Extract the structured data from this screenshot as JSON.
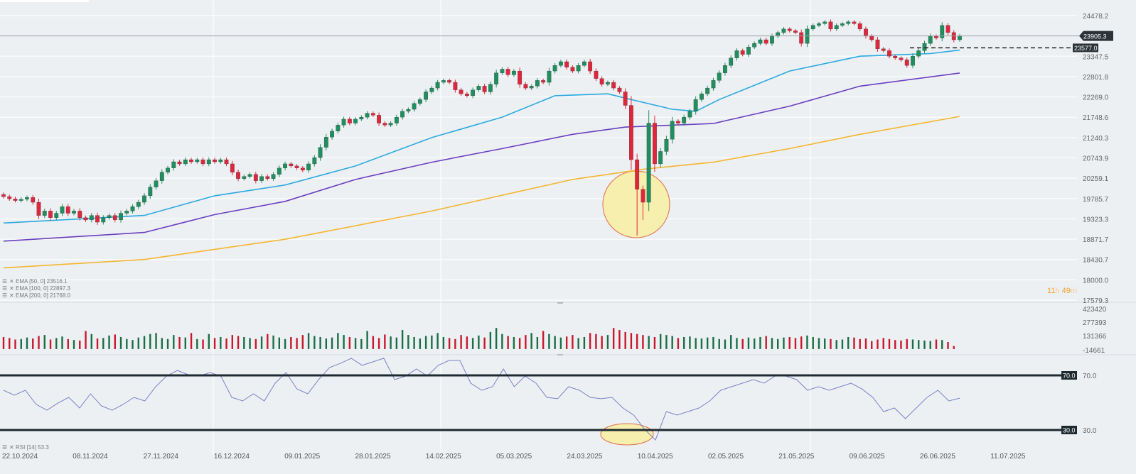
{
  "chart_data": {
    "type": "candlestick",
    "price_scale": "log",
    "price_ticks": [
      "24478.2",
      "23347.5",
      "22801.8",
      "22269.0",
      "21748.6",
      "21240.3",
      "20743.9",
      "20259.1",
      "19785.7",
      "19323.3",
      "18871.7",
      "18430.7",
      "18000.0",
      "17579.3"
    ],
    "price_range": [
      17579.3,
      24478.2
    ],
    "last_price": 23905.3,
    "last_price_label": "23905.3",
    "level_line": 23577.0,
    "level_line_label": "23577.0",
    "countdown": {
      "hours": "11",
      "h": "h",
      "minutes": "49",
      "m": "m"
    },
    "colors": {
      "up": "#1f8f5f",
      "down": "#e0263c",
      "ema50": "#29a9e0",
      "ema100": "#6a3fc0",
      "ema200": "#f5b52e",
      "rsi": "#7a80c8",
      "highlight_fill": "#f7eea0",
      "highlight_stroke": "#e06a4a"
    },
    "close": [
      19830,
      19780,
      19740,
      19770,
      19810,
      19700,
      19400,
      19500,
      19350,
      19450,
      19600,
      19450,
      19500,
      19350,
      19300,
      19400,
      19250,
      19350,
      19400,
      19300,
      19450,
      19500,
      19600,
      19700,
      19850,
      20050,
      20200,
      20400,
      20500,
      20650,
      20600,
      20700,
      20650,
      20700,
      20600,
      20700,
      20650,
      20700,
      20600,
      20400,
      20250,
      20300,
      20350,
      20200,
      20300,
      20250,
      20350,
      20500,
      20600,
      20550,
      20500,
      20450,
      20600,
      20750,
      21000,
      21250,
      21400,
      21550,
      21700,
      21600,
      21700,
      21750,
      21850,
      21800,
      21600,
      21550,
      21600,
      21750,
      21900,
      21950,
      22100,
      22200,
      22400,
      22500,
      22650,
      22700,
      22650,
      22450,
      22350,
      22300,
      22450,
      22550,
      22400,
      22600,
      22900,
      23000,
      22850,
      22950,
      22600,
      22500,
      22550,
      22700,
      22650,
      22950,
      23100,
      23200,
      23050,
      22950,
      23100,
      23200,
      22950,
      22750,
      22600,
      22650,
      22500,
      22400,
      22050,
      20700,
      20000,
      19700,
      21600,
      20600,
      20900,
      21200,
      21650,
      21600,
      21750,
      21900,
      22200,
      22350,
      22500,
      22700,
      22900,
      23100,
      23300,
      23500,
      23400,
      23600,
      23700,
      23800,
      23700,
      23900,
      24000,
      24100,
      24050,
      24000,
      23700,
      24100,
      24200,
      24250,
      24300,
      24100,
      24200,
      24250,
      24300,
      24250,
      24100,
      23900,
      23800,
      23550,
      23500,
      23350,
      23300,
      23250,
      23100,
      23350,
      23500,
      23700,
      23900,
      23850,
      24200,
      24000,
      23800,
      23905
    ],
    "low_overrides": {
      "108": 18950,
      "109": 19300,
      "110": 19500
    },
    "volume": [
      120,
      110,
      95,
      100,
      115,
      105,
      130,
      140,
      95,
      110,
      125,
      100,
      90,
      85,
      180,
      150,
      105,
      110,
      135,
      145,
      120,
      100,
      90,
      115,
      130,
      150,
      160,
      110,
      100,
      140,
      120,
      115,
      160,
      100,
      95,
      150,
      110,
      120,
      105,
      140,
      130,
      120,
      110,
      100,
      125,
      150,
      135,
      115,
      100,
      120,
      110,
      140,
      160,
      130,
      120,
      105,
      115,
      160,
      140,
      120,
      110,
      100,
      180,
      130,
      110,
      145,
      125,
      115,
      190,
      140,
      120,
      105,
      130,
      135,
      160,
      120,
      110,
      100,
      140,
      125,
      110,
      135,
      115,
      170,
      210,
      150,
      130,
      120,
      110,
      140,
      160,
      120,
      180,
      150,
      130,
      115,
      125,
      140,
      110,
      120,
      160,
      150,
      130,
      140,
      210,
      190,
      170,
      160,
      150,
      140,
      130,
      120,
      150,
      140,
      130,
      110,
      120,
      125,
      110,
      105,
      115,
      120,
      100,
      95,
      140,
      110,
      100,
      115,
      105,
      120,
      130,
      110,
      100,
      115,
      120,
      110,
      125,
      135,
      120,
      110,
      105,
      100,
      90,
      95,
      120,
      115,
      100,
      105,
      80,
      95,
      110,
      100,
      90,
      85,
      100,
      95,
      90,
      85,
      80,
      95,
      90,
      70,
      30
    ],
    "volume_ticks": [
      "423420",
      "277393",
      "131366",
      "-14661"
    ],
    "volume_range": [
      -14661,
      423420
    ],
    "ema": [
      {
        "name": "EMA",
        "params": "[50,  0]",
        "value": "23516.1",
        "points": [
          [
            0,
            19230
          ],
          [
            24,
            19400
          ],
          [
            36,
            19850
          ],
          [
            48,
            20100
          ],
          [
            60,
            20550
          ],
          [
            73,
            21240
          ],
          [
            85,
            21750
          ],
          [
            94,
            22300
          ],
          [
            103,
            22350
          ],
          [
            107,
            22200
          ],
          [
            114,
            21950
          ],
          [
            118,
            21900
          ],
          [
            122,
            22200
          ],
          [
            134,
            22950
          ],
          [
            146,
            23350
          ],
          [
            158,
            23420
          ],
          [
            163,
            23516
          ]
        ]
      },
      {
        "name": "EMA",
        "params": "[100,  0]",
        "value": "22897.3",
        "points": [
          [
            0,
            18830
          ],
          [
            24,
            19020
          ],
          [
            36,
            19420
          ],
          [
            48,
            19720
          ],
          [
            60,
            20230
          ],
          [
            73,
            20640
          ],
          [
            85,
            20970
          ],
          [
            97,
            21320
          ],
          [
            106,
            21500
          ],
          [
            121,
            21590
          ],
          [
            134,
            22030
          ],
          [
            146,
            22550
          ],
          [
            163,
            22897
          ]
        ]
      },
      {
        "name": "EMA",
        "params": "[200,  0]",
        "value": "21768.0",
        "points": [
          [
            0,
            18250
          ],
          [
            24,
            18431
          ],
          [
            48,
            18870
          ],
          [
            73,
            19500
          ],
          [
            97,
            20230
          ],
          [
            109,
            20470
          ],
          [
            121,
            20640
          ],
          [
            134,
            20970
          ],
          [
            146,
            21320
          ],
          [
            163,
            21768
          ]
        ]
      }
    ],
    "rsi": {
      "name": "RSI",
      "params": "[14]",
      "value": "53.3",
      "levels": [
        70,
        30
      ],
      "level_labels": [
        "70.0",
        "30.0"
      ],
      "ticks": [
        "70.0",
        "30.0"
      ],
      "values": [
        59.1,
        55.5,
        59.1,
        48.7,
        44.5,
        49.7,
        53.9,
        46.1,
        56.5,
        47.7,
        44.5,
        48.7,
        53.9,
        51.3,
        61.7,
        69.5,
        73.6,
        70.5,
        69.5,
        72.1,
        69.5,
        53.9,
        51.3,
        56.5,
        51.3,
        64.3,
        72.1,
        60.1,
        56.5,
        66.9,
        75.7,
        78.8,
        82.5,
        77.3,
        79.9,
        82.5,
        66.9,
        69.5,
        74.7,
        69.5,
        77.3,
        80.9,
        80.9,
        64.3,
        59.1,
        61.7,
        74.7,
        61.7,
        69.5,
        64.3,
        53.9,
        52.9,
        61.7,
        59.1,
        53.9,
        52.9,
        53.9,
        46.1,
        40.9,
        30.5,
        22.7,
        43.5,
        40.9,
        43.5,
        46.1,
        51.3,
        59.1,
        61.7,
        64.3,
        66.9,
        64.3,
        69.5,
        69.5,
        66.9,
        59.1,
        61.7,
        59.1,
        61.7,
        64.3,
        60.1,
        53.9,
        43.5,
        46.1,
        38.3,
        46.1,
        53.9,
        59.1,
        51.3,
        53.3
      ]
    },
    "dates": [
      "22.10.2024",
      "08.11.2024",
      "27.11.2024",
      "16.12.2024",
      "09.01.2025",
      "28.01.2025",
      "14.02.2025",
      "05.03.2025",
      "24.03.2025",
      "10.04.2025",
      "02.05.2025",
      "21.05.2025",
      "09.06.2025",
      "26.06.2025",
      "11.07.2025"
    ]
  }
}
